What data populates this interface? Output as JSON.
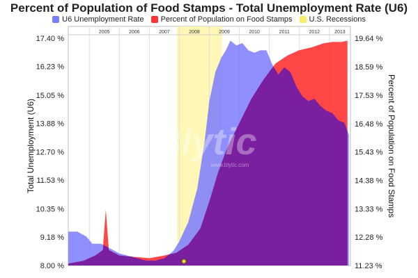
{
  "chart_data": {
    "type": "area",
    "title": "Percent of Population of Food Stamps - Total Unemployment Rate (U6)",
    "ylabel_left": "Total Unemployment (U6)",
    "ylabel_right": "Percent of Population on Food Stamps",
    "yticks_left": [
      "17.40 %",
      "16.23 %",
      "15.05 %",
      "13.88 %",
      "12.70 %",
      "11.53 %",
      "10.35 %",
      "9.18 %",
      "8.00 %"
    ],
    "yticks_right": [
      "19.64 %",
      "18.59 %",
      "17.53 %",
      "16.48 %",
      "15.43 %",
      "14.38 %",
      "13.33 %",
      "12.28 %",
      "11.23 %"
    ],
    "ylim_left": [
      8.0,
      17.4
    ],
    "ylim_right": [
      11.23,
      19.64
    ],
    "xlim": [
      2004.3,
      2013.7
    ],
    "year_labels": [
      "2005",
      "2006",
      "2007",
      "2008",
      "2009",
      "2010",
      "2011",
      "2012",
      "2013"
    ],
    "legend_position": "top-center",
    "watermark": "Blytic",
    "watermark_sub": "www.blytic.com",
    "colors": {
      "u6": "#7b7bff",
      "food_stamps": "#ff3333",
      "recession": "#fff6a8",
      "overlap": "#7a1fa0"
    },
    "recessions": [
      {
        "start": 2007.92,
        "end": 2009.42
      }
    ],
    "series": [
      {
        "name": "U6 Unemployment Rate",
        "axis": "left",
        "points": [
          [
            2004.3,
            9.4
          ],
          [
            2004.6,
            9.4
          ],
          [
            2004.9,
            9.2
          ],
          [
            2005.1,
            8.9
          ],
          [
            2005.4,
            8.9
          ],
          [
            2005.7,
            8.7
          ],
          [
            2006.0,
            8.5
          ],
          [
            2006.3,
            8.4
          ],
          [
            2006.6,
            8.3
          ],
          [
            2006.9,
            8.2
          ],
          [
            2007.2,
            8.2
          ],
          [
            2007.5,
            8.3
          ],
          [
            2007.8,
            8.6
          ],
          [
            2008.0,
            9.0
          ],
          [
            2008.3,
            9.8
          ],
          [
            2008.6,
            11.2
          ],
          [
            2008.85,
            13.2
          ],
          [
            2009.0,
            14.8
          ],
          [
            2009.2,
            16.0
          ],
          [
            2009.4,
            16.6
          ],
          [
            2009.55,
            16.9
          ],
          [
            2009.7,
            17.3
          ],
          [
            2009.9,
            17.1
          ],
          [
            2010.1,
            17.2
          ],
          [
            2010.3,
            16.9
          ],
          [
            2010.5,
            16.8
          ],
          [
            2010.7,
            16.9
          ],
          [
            2010.9,
            16.9
          ],
          [
            2011.1,
            16.3
          ],
          [
            2011.3,
            15.9
          ],
          [
            2011.5,
            16.2
          ],
          [
            2011.7,
            16.0
          ],
          [
            2011.9,
            15.4
          ],
          [
            2012.1,
            15.0
          ],
          [
            2012.3,
            14.8
          ],
          [
            2012.5,
            14.9
          ],
          [
            2012.7,
            14.6
          ],
          [
            2012.9,
            14.4
          ],
          [
            2013.1,
            14.3
          ],
          [
            2013.3,
            14.0
          ],
          [
            2013.5,
            13.9
          ],
          [
            2013.65,
            13.4
          ]
        ]
      },
      {
        "name": "Percent of Population on Food Stamps",
        "axis": "right",
        "points": [
          [
            2004.3,
            11.3
          ],
          [
            2004.8,
            11.4
          ],
          [
            2005.2,
            11.6
          ],
          [
            2005.45,
            11.8
          ],
          [
            2005.55,
            13.3
          ],
          [
            2005.65,
            11.8
          ],
          [
            2006.0,
            11.6
          ],
          [
            2006.5,
            11.55
          ],
          [
            2007.0,
            11.5
          ],
          [
            2007.5,
            11.6
          ],
          [
            2007.9,
            11.7
          ],
          [
            2008.3,
            12.0
          ],
          [
            2008.7,
            12.6
          ],
          [
            2009.0,
            13.6
          ],
          [
            2009.3,
            14.7
          ],
          [
            2009.6,
            15.6
          ],
          [
            2010.0,
            16.5
          ],
          [
            2010.4,
            17.4
          ],
          [
            2010.8,
            18.1
          ],
          [
            2011.2,
            18.7
          ],
          [
            2011.6,
            19.0
          ],
          [
            2012.0,
            19.2
          ],
          [
            2012.4,
            19.3
          ],
          [
            2012.8,
            19.45
          ],
          [
            2013.1,
            19.5
          ],
          [
            2013.4,
            19.5
          ],
          [
            2013.6,
            19.55
          ]
        ]
      }
    ]
  },
  "legend": {
    "u6_label": "U6 Unemployment Rate",
    "fs_label": "Percent of Population on Food Stamps",
    "recession_label": "U.S. Recessions"
  }
}
